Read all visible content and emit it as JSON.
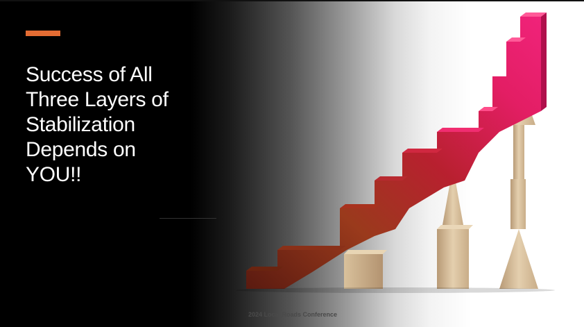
{
  "slide": {
    "title": "Success of All\nThree Layers of\nStabilization\nDepends on\nYOU!!",
    "footer": "2024 Local Roads Conference",
    "colors": {
      "accent": "#e46c33",
      "background": "#000000",
      "title_text": "#ffffff",
      "stair_bottom": "#7a2a14",
      "stair_middle": "#b0222e",
      "stair_top": "#e8186a"
    }
  }
}
